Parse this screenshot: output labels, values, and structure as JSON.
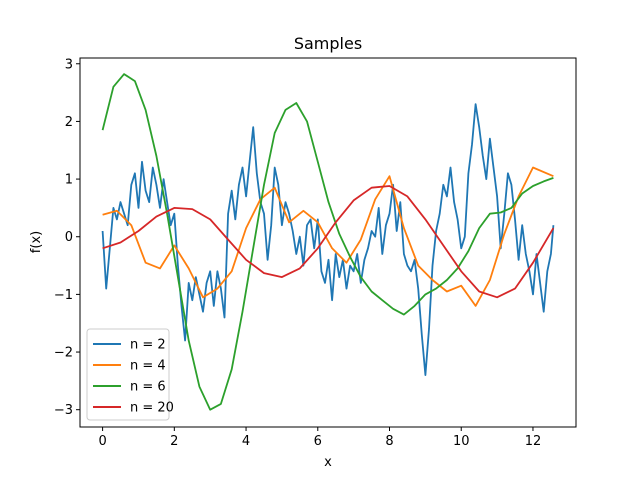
{
  "chart_data": {
    "type": "line",
    "title": "Samples",
    "xlabel": "x",
    "ylabel": "f(x)",
    "xlim": [
      -0.63,
      13.2
    ],
    "ylim": [
      -3.3,
      3.1
    ],
    "xticks": [
      0,
      2,
      4,
      6,
      8,
      10,
      12
    ],
    "xtick_labels": [
      "0",
      "2",
      "4",
      "6",
      "8",
      "10",
      "12"
    ],
    "yticks": [
      -3,
      -2,
      -1,
      0,
      1,
      2,
      3
    ],
    "ytick_labels": [
      "−3",
      "−2",
      "−1",
      "0",
      "1",
      "2",
      "3"
    ],
    "grid": false,
    "legend_position": "lower-left",
    "series": [
      {
        "name": "n = 2",
        "color": "#1f77b4",
        "x": [
          0,
          0.1,
          0.2,
          0.3,
          0.4,
          0.5,
          0.6,
          0.7,
          0.8,
          0.9,
          1.0,
          1.1,
          1.2,
          1.3,
          1.4,
          1.5,
          1.6,
          1.7,
          1.8,
          1.9,
          2.0,
          2.1,
          2.2,
          2.3,
          2.4,
          2.5,
          2.6,
          2.7,
          2.8,
          2.9,
          3.0,
          3.1,
          3.2,
          3.3,
          3.4,
          3.5,
          3.6,
          3.7,
          3.8,
          3.9,
          4.0,
          4.1,
          4.2,
          4.3,
          4.4,
          4.5,
          4.6,
          4.7,
          4.8,
          4.9,
          5.0,
          5.1,
          5.2,
          5.3,
          5.4,
          5.5,
          5.6,
          5.7,
          5.8,
          5.9,
          6.0,
          6.1,
          6.2,
          6.3,
          6.4,
          6.5,
          6.6,
          6.7,
          6.8,
          6.9,
          7.0,
          7.1,
          7.2,
          7.3,
          7.4,
          7.5,
          7.6,
          7.7,
          7.8,
          7.9,
          8.0,
          8.1,
          8.2,
          8.3,
          8.4,
          8.5,
          8.6,
          8.7,
          8.8,
          8.9,
          9.0,
          9.1,
          9.2,
          9.3,
          9.4,
          9.5,
          9.6,
          9.7,
          9.8,
          9.9,
          10.0,
          10.1,
          10.2,
          10.3,
          10.4,
          10.5,
          10.6,
          10.7,
          10.8,
          10.9,
          11.0,
          11.1,
          11.2,
          11.3,
          11.4,
          11.5,
          11.6,
          11.7,
          11.8,
          11.9,
          12.0,
          12.1,
          12.2,
          12.3,
          12.4,
          12.5,
          12.57
        ],
        "y": [
          0.1,
          -0.9,
          -0.2,
          0.5,
          0.3,
          0.6,
          0.4,
          0.2,
          0.9,
          1.1,
          0.5,
          1.3,
          0.8,
          0.6,
          1.2,
          0.9,
          0.5,
          1.0,
          0.6,
          0.2,
          0.4,
          -0.5,
          -1.2,
          -1.8,
          -0.8,
          -1.1,
          -0.7,
          -1.0,
          -1.3,
          -0.8,
          -0.6,
          -1.2,
          -0.6,
          -0.9,
          -1.4,
          0.4,
          0.8,
          0.3,
          0.9,
          1.2,
          0.7,
          1.3,
          1.9,
          1.1,
          0.6,
          0.4,
          -0.4,
          0.2,
          1.2,
          0.9,
          0.2,
          0.6,
          0.4,
          0.1,
          -0.3,
          0.0,
          -0.5,
          0.2,
          0.3,
          -0.2,
          0.3,
          -0.6,
          -0.8,
          -0.4,
          -1.1,
          -0.3,
          -0.7,
          -0.4,
          -0.9,
          -0.5,
          -0.6,
          -0.3,
          -0.8,
          -0.4,
          -0.2,
          0.1,
          0.0,
          0.5,
          -0.3,
          0.2,
          0.4,
          0.9,
          0.1,
          0.6,
          -0.3,
          -0.5,
          -0.6,
          -0.4,
          -0.9,
          -1.7,
          -2.4,
          -1.6,
          -0.5,
          0.1,
          0.4,
          0.9,
          0.7,
          1.2,
          0.6,
          0.3,
          -0.2,
          0.0,
          1.1,
          1.6,
          2.3,
          1.9,
          1.4,
          1.0,
          1.7,
          1.2,
          0.7,
          -0.2,
          0.4,
          1.1,
          0.9,
          0.3,
          -0.4,
          0.2,
          -0.3,
          -0.6,
          -1.0,
          -0.3,
          -0.8,
          -1.3,
          -0.6,
          -0.3,
          0.2
        ]
      },
      {
        "name": "n = 4",
        "color": "#ff7f0e",
        "x": [
          0,
          0.4,
          0.8,
          1.2,
          1.6,
          2.0,
          2.4,
          2.8,
          3.2,
          3.6,
          4.0,
          4.4,
          4.8,
          5.2,
          5.6,
          6.0,
          6.4,
          6.8,
          7.2,
          7.6,
          8.0,
          8.4,
          8.8,
          9.2,
          9.6,
          10.0,
          10.4,
          10.8,
          11.2,
          11.6,
          12.0,
          12.57
        ],
        "y": [
          0.38,
          0.45,
          0.2,
          -0.45,
          -0.55,
          -0.15,
          -0.55,
          -1.05,
          -0.9,
          -0.6,
          0.15,
          0.65,
          0.85,
          0.25,
          0.45,
          0.25,
          -0.2,
          -0.45,
          -0.05,
          0.65,
          1.05,
          0.15,
          -0.5,
          -0.75,
          -0.95,
          -0.85,
          -1.2,
          -0.75,
          0.05,
          0.7,
          1.2,
          1.05
        ]
      },
      {
        "name": "n = 6",
        "color": "#2ca02c",
        "x": [
          0,
          0.3,
          0.6,
          0.9,
          1.2,
          1.5,
          1.8,
          2.1,
          2.4,
          2.7,
          3.0,
          3.3,
          3.6,
          3.9,
          4.2,
          4.5,
          4.8,
          5.1,
          5.4,
          5.7,
          6.0,
          6.3,
          6.6,
          6.9,
          7.2,
          7.5,
          7.8,
          8.1,
          8.4,
          8.7,
          9.0,
          9.3,
          9.6,
          9.9,
          10.2,
          10.5,
          10.8,
          11.1,
          11.4,
          11.7,
          12.0,
          12.3,
          12.57
        ],
        "y": [
          1.85,
          2.6,
          2.82,
          2.7,
          2.2,
          1.4,
          0.4,
          -0.7,
          -1.8,
          -2.6,
          -3.0,
          -2.9,
          -2.3,
          -1.3,
          -0.2,
          0.9,
          1.8,
          2.2,
          2.32,
          2.0,
          1.3,
          0.6,
          0.05,
          -0.35,
          -0.7,
          -0.95,
          -1.1,
          -1.25,
          -1.35,
          -1.2,
          -1.0,
          -0.9,
          -0.75,
          -0.55,
          -0.25,
          0.15,
          0.4,
          0.42,
          0.5,
          0.75,
          0.88,
          0.96,
          1.02
        ]
      },
      {
        "name": "n = 20",
        "color": "#d62728",
        "x": [
          0,
          0.5,
          1.0,
          1.5,
          2.0,
          2.5,
          3.0,
          3.5,
          4.0,
          4.5,
          5.0,
          5.5,
          6.0,
          6.5,
          7.0,
          7.5,
          8.0,
          8.5,
          9.0,
          9.5,
          10.0,
          10.5,
          11.0,
          11.5,
          12.0,
          12.57
        ],
        "y": [
          -0.2,
          -0.1,
          0.1,
          0.35,
          0.5,
          0.48,
          0.3,
          -0.05,
          -0.4,
          -0.63,
          -0.7,
          -0.55,
          -0.2,
          0.25,
          0.63,
          0.85,
          0.88,
          0.7,
          0.3,
          -0.15,
          -0.6,
          -0.95,
          -1.05,
          -0.9,
          -0.45,
          0.15
        ]
      }
    ]
  }
}
